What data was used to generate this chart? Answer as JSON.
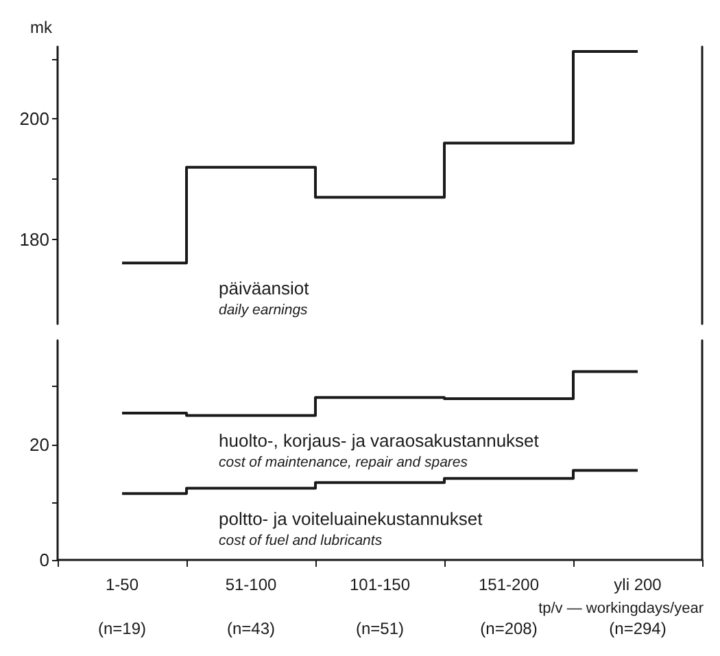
{
  "chart_data": [
    {
      "type": "step",
      "ylabel": "mk",
      "categories": [
        null,
        null,
        null,
        null,
        null
      ],
      "tick_labels": "y",
      "ylim": [
        166,
        212
      ],
      "yticks": [
        180,
        {
          "value": 190,
          "label": null
        },
        200,
        {
          "value": 210,
          "label": null
        }
      ],
      "grid": false,
      "legend": false,
      "series": [
        {
          "name": "päiväansiot",
          "color": "#1a1a1a",
          "values": [
            176.1,
            192,
            187,
            196,
            211.2
          ]
        }
      ],
      "annotations": [
        "daily earnings"
      ]
    },
    {
      "type": "step",
      "xlabel": "tp/v — workingdays/year",
      "categories": [
        "1-50\n(n=19)",
        "51-100\n(n=43)",
        "101-150\n(n=51)",
        "151-200\n(n=208)",
        "yli 200\n(n=294)"
      ],
      "ylim": [
        0,
        38
      ],
      "yticks": [
        0,
        {
          "value": 10,
          "label": null
        },
        20,
        {
          "value": 30,
          "label": null
        }
      ],
      "grid": false,
      "legend": false,
      "series": [
        {
          "name": "huolto-, korjaus- ja varaosakustannukset",
          "color": "#1a1a1a",
          "values": [
            25.4,
            25.0,
            28.1,
            27.9,
            32.6
          ]
        },
        {
          "name": "poltto- ja voiteluainekustannukset",
          "color": "#1a1a1a",
          "values": [
            11.5,
            12.4,
            13.4,
            14.1,
            15.5
          ]
        }
      ],
      "annotations": [
        "cost of maintenance, repair and spares",
        "cost of fuel and lubricants"
      ]
    }
  ]
}
